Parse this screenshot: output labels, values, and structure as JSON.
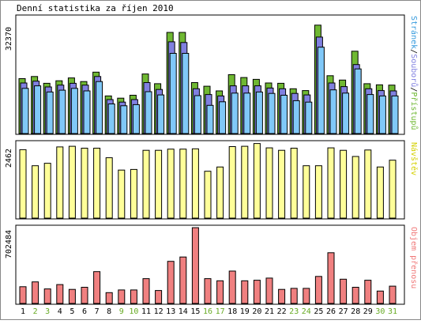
{
  "title": "Denní statistika za říjen 2010",
  "colors": {
    "hits": "#6fb832",
    "files": "#8080e0",
    "pages": "#80c8f8",
    "visits": "#ffff99",
    "traffic": "#f08080",
    "weekend_label": "#66aa22",
    "weekday_label": "#000000",
    "visits_legend": "#d4d000",
    "traffic_legend": "#f07878",
    "hits_legend": "#6fb832",
    "files_legend": "#8080e0",
    "pages_legend": "#3399dd"
  },
  "chart_data": [
    {
      "type": "bar",
      "title": "Denní statistika za říjen 2010",
      "categories": [
        "1",
        "2",
        "3",
        "4",
        "5",
        "6",
        "7",
        "8",
        "9",
        "10",
        "11",
        "12",
        "13",
        "14",
        "15",
        "16",
        "17",
        "18",
        "19",
        "20",
        "21",
        "22",
        "23",
        "24",
        "25",
        "26",
        "27",
        "28",
        "29",
        "30",
        "31"
      ],
      "weekend_days": [
        "2",
        "3",
        "9",
        "10",
        "16",
        "17",
        "23",
        "24",
        "30",
        "31"
      ],
      "ymax_label": "32370",
      "ylim": [
        0,
        32370
      ],
      "legend": {
        "position": "right",
        "parts": [
          {
            "text": "Stránek",
            "series": "pages"
          },
          {
            "text": "/",
            "series": "separator"
          },
          {
            "text": "Souborů",
            "series": "files"
          },
          {
            "text": "/",
            "series": "separator"
          },
          {
            "text": "Přístupů",
            "series": "hits"
          }
        ]
      },
      "series": [
        {
          "name": "Přístupů",
          "key": "hits",
          "values": [
            15200,
            15800,
            13900,
            14600,
            15400,
            14400,
            17000,
            10400,
            9800,
            10600,
            16500,
            13800,
            28000,
            28000,
            14100,
            13100,
            11800,
            16300,
            15500,
            15000,
            14000,
            13900,
            12400,
            11900,
            30000,
            16000,
            14800,
            22800,
            13800,
            13500,
            13400
          ]
        },
        {
          "name": "Souborů",
          "key": "files",
          "values": [
            14000,
            14500,
            12900,
            13400,
            13900,
            13400,
            15800,
            9400,
            8700,
            9400,
            14100,
            12200,
            25400,
            25200,
            12400,
            10800,
            10400,
            13200,
            13200,
            13200,
            12600,
            12400,
            11100,
            10700,
            26700,
            14000,
            13000,
            19100,
            12400,
            11900,
            11800
          ]
        },
        {
          "name": "Stránek",
          "key": "pages",
          "values": [
            12500,
            13200,
            11500,
            12000,
            12500,
            11800,
            14400,
            8200,
            7700,
            8000,
            11600,
            10700,
            22200,
            22200,
            10500,
            7800,
            8800,
            11200,
            11200,
            11500,
            11100,
            10600,
            9100,
            8700,
            23900,
            12100,
            11200,
            17900,
            10800,
            10400,
            10400
          ]
        }
      ]
    },
    {
      "type": "bar",
      "categories": [
        "1",
        "2",
        "3",
        "4",
        "5",
        "6",
        "7",
        "8",
        "9",
        "10",
        "11",
        "12",
        "13",
        "14",
        "15",
        "16",
        "17",
        "18",
        "19",
        "20",
        "21",
        "22",
        "23",
        "24",
        "25",
        "26",
        "27",
        "28",
        "29",
        "30",
        "31"
      ],
      "ymax_label": "2462",
      "ylim": [
        0,
        2462
      ],
      "legend": {
        "position": "right",
        "text": "Návštěv"
      },
      "series": [
        {
          "name": "Návštěv",
          "key": "visits",
          "values": [
            2220,
            1700,
            1780,
            2310,
            2330,
            2270,
            2270,
            1960,
            1560,
            1580,
            2200,
            2200,
            2240,
            2240,
            2250,
            1520,
            1660,
            2320,
            2330,
            2420,
            2280,
            2200,
            2270,
            1700,
            1700,
            2280,
            2200,
            2000,
            2210,
            1660,
            1880
          ]
        }
      ]
    },
    {
      "type": "bar",
      "categories": [
        "1",
        "2",
        "3",
        "4",
        "5",
        "6",
        "7",
        "8",
        "9",
        "10",
        "11",
        "12",
        "13",
        "14",
        "15",
        "16",
        "17",
        "18",
        "19",
        "20",
        "21",
        "22",
        "23",
        "24",
        "25",
        "26",
        "27",
        "28",
        "29",
        "30",
        "31"
      ],
      "ymax_label": "702484",
      "ylim": [
        0,
        702484
      ],
      "legend": {
        "position": "right",
        "text": "Objem přenosu"
      },
      "series": [
        {
          "name": "Objem přenosu",
          "key": "traffic",
          "values": [
            155000,
            200000,
            135000,
            175000,
            130000,
            150000,
            295000,
            100000,
            125000,
            125000,
            230000,
            120000,
            390000,
            430000,
            702000,
            230000,
            210000,
            300000,
            210000,
            215000,
            235000,
            130000,
            140000,
            140000,
            250000,
            470000,
            225000,
            150000,
            215000,
            115000,
            160000
          ]
        }
      ]
    }
  ]
}
